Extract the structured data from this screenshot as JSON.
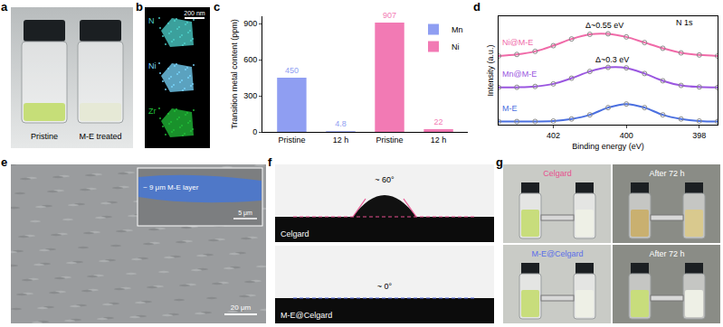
{
  "panel_labels": [
    "a",
    "b",
    "c",
    "d",
    "e",
    "f",
    "g"
  ],
  "photo_a": {
    "labels": [
      "Pristine",
      "M-E treated"
    ]
  },
  "eds_b": {
    "maps": [
      {
        "element": "N",
        "color": "#4fd6d0"
      },
      {
        "element": "Ni",
        "color": "#7ad8ff"
      },
      {
        "element": "Zr",
        "color": "#22c23a"
      }
    ],
    "scale_bar": "200 nm"
  },
  "chart_data": [
    {
      "type": "bar",
      "categories": [
        "Pristine",
        "12 h",
        "Pristine",
        "12 h"
      ],
      "series": [
        {
          "name": "Mn",
          "color": "#8f9ef2",
          "values": [
            450,
            4.8,
            null,
            null
          ]
        },
        {
          "name": "Ni",
          "color": "#f27ab4",
          "values": [
            null,
            null,
            907,
            22
          ]
        }
      ],
      "y_label": "Transition metal content (ppm)",
      "ylim": [
        0,
        960
      ],
      "yticks": [
        0,
        300,
        600,
        900
      ],
      "data_labels": true,
      "legend": "upper right",
      "grid": false
    },
    {
      "type": "line",
      "x": [
        403.5,
        403,
        402.5,
        402,
        401.5,
        401,
        400.5,
        400,
        399.5,
        399,
        398.5,
        398,
        397.5
      ],
      "series": [
        {
          "name": "M-E",
          "color": "#4a6fe0",
          "values": [
            0.3,
            0.3,
            0.31,
            0.35,
            0.55,
            0.95,
            1.65,
            2.0,
            1.65,
            0.95,
            0.55,
            0.35,
            0.3
          ]
        },
        {
          "name": "Mn@M-E",
          "color": "#9a56e0",
          "values": [
            3.6,
            3.62,
            3.7,
            3.95,
            4.5,
            5.15,
            5.55,
            5.5,
            4.95,
            4.25,
            3.8,
            3.65,
            3.6
          ]
        },
        {
          "name": "Ni@M-E",
          "color": "#f06aa8",
          "values": [
            6.65,
            6.8,
            7.1,
            7.65,
            8.3,
            8.75,
            8.8,
            8.5,
            7.95,
            7.4,
            6.95,
            6.75,
            6.65
          ]
        }
      ],
      "x_label": "Binding energy (eV)",
      "y_label": "Intensity (a.u.)",
      "xlim": [
        403.5,
        397.5
      ],
      "xticks": [
        402,
        400,
        398
      ],
      "ylim": [
        0,
        10.5
      ],
      "yticks": [],
      "tick_labels": "x",
      "marker": "circle-open",
      "grid": false,
      "annotations": [
        {
          "text": "N 1s",
          "x": 398.4,
          "y": 9.9
        },
        {
          "text": "Δ~0.55 eV",
          "x": 400.6,
          "y": 9.6
        },
        {
          "text": "Δ~0.3 eV",
          "x": 400.4,
          "y": 6.3
        }
      ]
    }
  ],
  "sem_e": {
    "inset_label": "~ 9 μm M-E layer",
    "inset_scale_bar": "5 μm",
    "scale_bar": "20 μm"
  },
  "contact_angle_f": [
    {
      "sample": "Celgard",
      "angle": "~ 60°",
      "color": "#e8508f"
    },
    {
      "sample": "M-E@Celgard",
      "angle": "~ 0°",
      "color": "#5a6ee8"
    }
  ],
  "photo_g": [
    {
      "label": "Celgard",
      "color": "#e8508f"
    },
    {
      "label": "After 72 h",
      "color": "#ffffff"
    },
    {
      "label": "M-E@Celgard",
      "color": "#5a6ee8"
    },
    {
      "label": "After 72 h",
      "color": "#ffffff"
    }
  ]
}
